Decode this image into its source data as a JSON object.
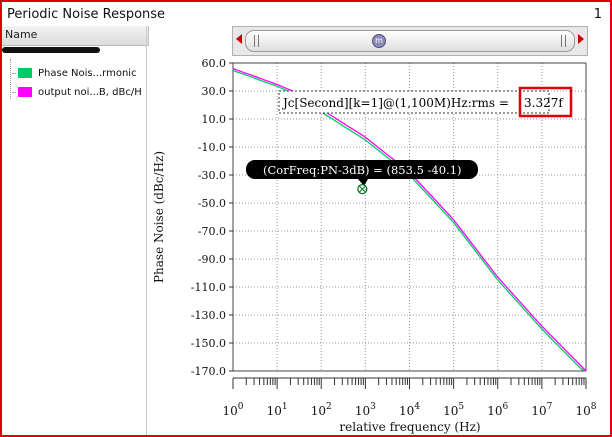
{
  "window": {
    "title": "Periodic Noise Response",
    "page_number": "1"
  },
  "left_panel": {
    "header": "Name",
    "traces": [
      {
        "label": "Phase Nois...rmonic",
        "color": "#00cc66"
      },
      {
        "label": "output noi...B, dBc/H",
        "color": "#ff00ff"
      }
    ]
  },
  "scrollbar": {
    "knob_icon": "m"
  },
  "annotations": {
    "measure_label": "Jc[Second][k=1]@(1,100M)Hz:rms = ",
    "measure_value": "3.327f",
    "marker_label": "(CorFreq:PN-3dB) = (853.5 -40.1)"
  },
  "colors": {
    "accent_red": "#e0000a",
    "trace_green": "#00cc66",
    "trace_magenta": "#ff00ff"
  },
  "chart_data": {
    "type": "line",
    "xscale": "log",
    "xlim": [
      1,
      100000000
    ],
    "ylim": [
      -170,
      60
    ],
    "xlabel": "relative frequency (Hz)",
    "ylabel": "Phase Noise (dBc/Hz)",
    "x_ticks": [
      {
        "base": "10",
        "exp": "0"
      },
      {
        "base": "10",
        "exp": "1"
      },
      {
        "base": "10",
        "exp": "2"
      },
      {
        "base": "10",
        "exp": "3"
      },
      {
        "base": "10",
        "exp": "4"
      },
      {
        "base": "10",
        "exp": "5"
      },
      {
        "base": "10",
        "exp": "6"
      },
      {
        "base": "10",
        "exp": "7"
      },
      {
        "base": "10",
        "exp": "8"
      }
    ],
    "y_ticks": [
      "60.0",
      "30.0",
      "10.0",
      "-10.0",
      "-30.0",
      "-50.0",
      "-70.0",
      "-90.0",
      "-110.0",
      "-130.0",
      "-150.0",
      "-170.0"
    ],
    "grid": true,
    "series": [
      {
        "name": "Phase Nois...rmonic",
        "color": "#00cc66",
        "x": [
          1,
          10,
          100,
          1000,
          10000,
          100000,
          1000000,
          10000000,
          100000000
        ],
        "y": [
          52,
          35,
          15,
          -5,
          -30,
          -64,
          -105,
          -140,
          -172
        ]
      },
      {
        "name": "output noi...B, dBc/H",
        "color": "#ff00ff",
        "x": [
          1,
          10,
          100,
          1000,
          10000,
          100000,
          1000000,
          10000000,
          100000000
        ],
        "y": [
          54,
          37,
          17,
          -3,
          -28,
          -62,
          -103,
          -138,
          -170
        ]
      }
    ],
    "marker": {
      "x": 853.5,
      "y": -40.1
    }
  }
}
